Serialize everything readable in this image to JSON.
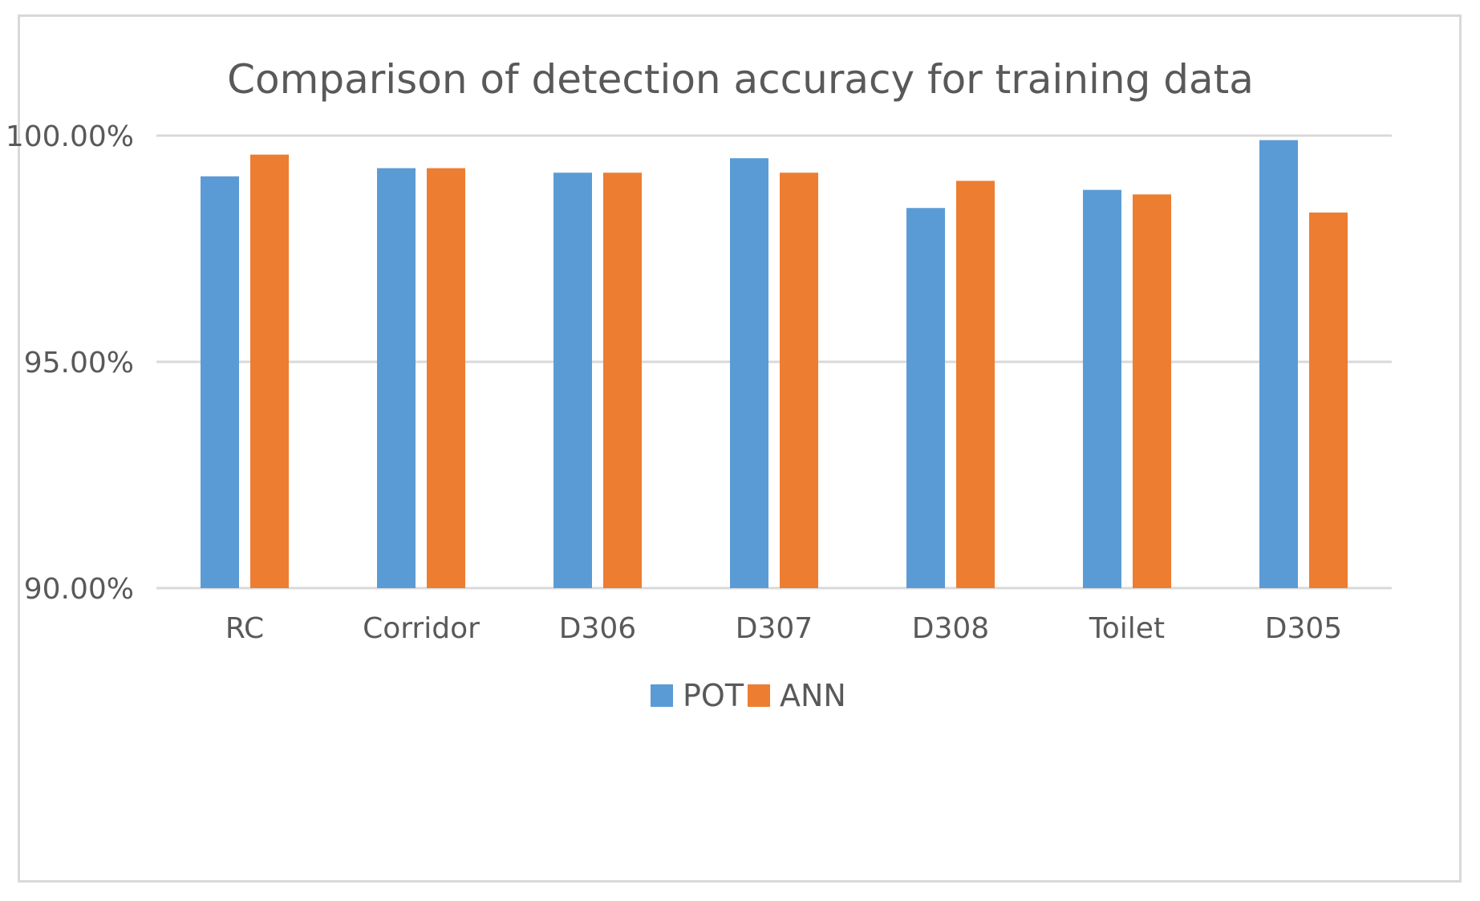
{
  "chart_data": {
    "type": "bar",
    "title": "Comparison of detection accuracy for training data",
    "xlabel": "",
    "ylabel": "",
    "categories": [
      "RC",
      "Corridor",
      "D306",
      "D307",
      "D308",
      "Toilet",
      "D305"
    ],
    "series": [
      {
        "name": "POT",
        "color": "#5b9bd5",
        "values": [
          99.1,
          99.28,
          99.18,
          99.5,
          98.4,
          98.8,
          99.9
        ]
      },
      {
        "name": "ANN",
        "color": "#ed7d31",
        "values": [
          99.58,
          99.28,
          99.18,
          99.18,
          99.0,
          98.7,
          98.3
        ]
      }
    ],
    "ylim": [
      90,
      100
    ],
    "yticks": [
      90,
      95,
      100
    ],
    "ytick_labels": [
      "90.00%",
      "95.00%",
      "100.00%"
    ],
    "grid": true,
    "gridline_color": "#d9d9d9",
    "legend_position": "bottom-center"
  }
}
